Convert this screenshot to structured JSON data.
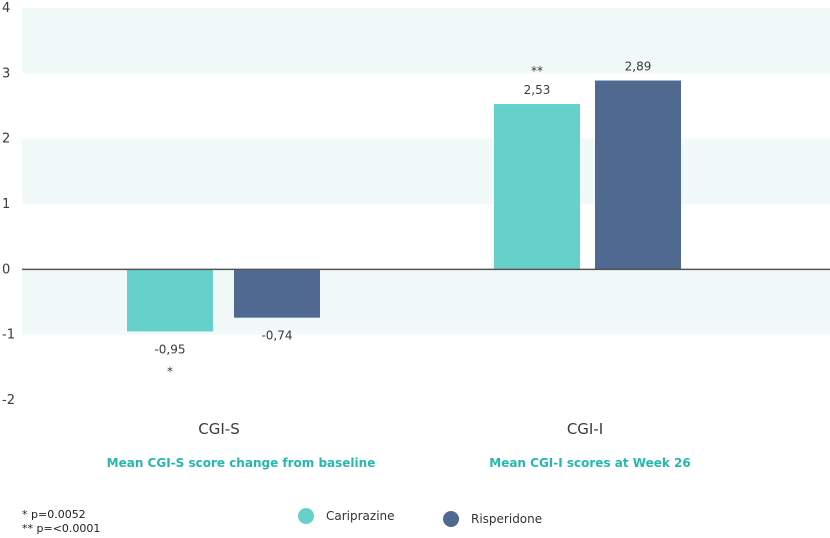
{
  "chart_data": {
    "type": "bar",
    "categories": [
      "CGI-S",
      "CGI-I"
    ],
    "category_subtitles": [
      "Mean CGI-S score change from baseline",
      "Mean CGI-I scores at Week 26"
    ],
    "series": [
      {
        "name": "Cariprazine",
        "values": [
          -0.95,
          2.53
        ],
        "labels": [
          "-0,95",
          "2,53"
        ],
        "significance": [
          "*",
          "**"
        ],
        "color": "#66d0cb"
      },
      {
        "name": "Risperidone",
        "values": [
          -0.74,
          2.89
        ],
        "labels": [
          "-0,74",
          "2,89"
        ],
        "significance": [
          "",
          ""
        ],
        "color": "#506990"
      }
    ],
    "yticks": [
      4,
      3,
      2,
      1,
      0,
      -1,
      -2
    ],
    "ylim": [
      -2,
      4
    ],
    "grid": "alternating horizontal bands",
    "band_color": "#f1f9f9",
    "subtitle_color": "#26b8b0",
    "legend_position": "bottom-center"
  },
  "footnotes": [
    "* p=0.0052",
    "** p=<0.0001"
  ]
}
